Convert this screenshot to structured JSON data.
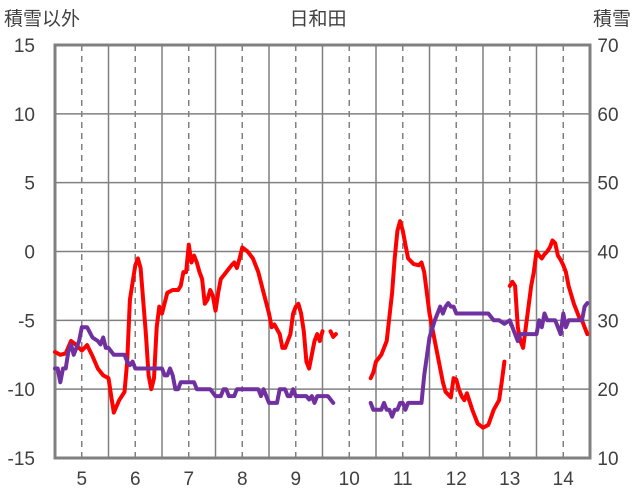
{
  "chart_data": {
    "type": "line",
    "title": "日和田",
    "left_axis_label": "積雪以外",
    "right_axis_label": "積雪",
    "ylim_left": [
      -15,
      15
    ],
    "ylim_right": [
      10,
      70
    ],
    "xlim": [
      4.5,
      14.5
    ],
    "yticks_left": [
      -15,
      -10,
      -5,
      0,
      5,
      10,
      15
    ],
    "yticks_right": [
      10,
      20,
      30,
      40,
      50,
      60,
      70
    ],
    "xticks": [
      5,
      6,
      7,
      8,
      9,
      10,
      11,
      12,
      13,
      14
    ],
    "grid": true,
    "legend": "none",
    "series": [
      {
        "color": "#ff0000",
        "axis": "left",
        "segments": [
          [
            [
              4.5,
              -7.3
            ],
            [
              4.6,
              -7.5
            ],
            [
              4.7,
              -7.4
            ],
            [
              4.8,
              -6.5
            ],
            [
              4.9,
              -6.8
            ],
            [
              5.0,
              -7.2
            ],
            [
              5.1,
              -6.8
            ],
            [
              5.2,
              -7.6
            ],
            [
              5.3,
              -8.5
            ],
            [
              5.4,
              -9.0
            ],
            [
              5.5,
              -9.2
            ],
            [
              5.55,
              -10.5
            ],
            [
              5.6,
              -11.7
            ],
            [
              5.7,
              -10.8
            ],
            [
              5.8,
              -10.2
            ],
            [
              5.85,
              -8.0
            ],
            [
              5.9,
              -3.5
            ],
            [
              6.0,
              -1.0
            ],
            [
              6.05,
              -0.5
            ],
            [
              6.1,
              -1.2
            ],
            [
              6.2,
              -6.0
            ],
            [
              6.25,
              -9.0
            ],
            [
              6.3,
              -10.0
            ],
            [
              6.35,
              -9.2
            ],
            [
              6.4,
              -5.5
            ],
            [
              6.45,
              -4.0
            ],
            [
              6.5,
              -4.5
            ],
            [
              6.6,
              -3.0
            ],
            [
              6.7,
              -2.8
            ],
            [
              6.8,
              -2.8
            ],
            [
              6.85,
              -2.5
            ],
            [
              6.9,
              -1.5
            ],
            [
              6.95,
              -1.5
            ],
            [
              7.0,
              0.5
            ],
            [
              7.05,
              -0.8
            ],
            [
              7.1,
              -0.3
            ],
            [
              7.15,
              -0.8
            ],
            [
              7.2,
              -1.5
            ],
            [
              7.25,
              -2.0
            ],
            [
              7.3,
              -3.8
            ],
            [
              7.35,
              -3.5
            ],
            [
              7.4,
              -2.8
            ],
            [
              7.45,
              -3.2
            ],
            [
              7.5,
              -4.3
            ],
            [
              7.55,
              -3.0
            ],
            [
              7.6,
              -2.0
            ],
            [
              7.7,
              -1.5
            ],
            [
              7.8,
              -1.0
            ],
            [
              7.85,
              -0.8
            ],
            [
              7.9,
              -1.2
            ],
            [
              7.95,
              -0.5
            ],
            [
              8.0,
              0.3
            ],
            [
              8.1,
              0.0
            ],
            [
              8.2,
              -0.5
            ],
            [
              8.3,
              -1.5
            ],
            [
              8.4,
              -3.0
            ],
            [
              8.5,
              -4.5
            ],
            [
              8.55,
              -5.5
            ],
            [
              8.6,
              -5.3
            ],
            [
              8.7,
              -6.0
            ],
            [
              8.75,
              -7.0
            ],
            [
              8.8,
              -7.0
            ],
            [
              8.9,
              -6.0
            ],
            [
              8.95,
              -4.5
            ],
            [
              9.0,
              -4.0
            ],
            [
              9.05,
              -3.8
            ],
            [
              9.1,
              -4.5
            ],
            [
              9.15,
              -5.8
            ],
            [
              9.2,
              -8.0
            ],
            [
              9.25,
              -8.5
            ],
            [
              9.3,
              -7.5
            ],
            [
              9.35,
              -6.5
            ],
            [
              9.4,
              -6.0
            ],
            [
              9.45,
              -6.5
            ],
            [
              9.5,
              -5.8
            ]
          ],
          [
            [
              9.65,
              -5.8
            ],
            [
              9.7,
              -6.2
            ],
            [
              9.75,
              -6.0
            ]
          ],
          [
            [
              10.4,
              -9.2
            ],
            [
              10.45,
              -8.8
            ],
            [
              10.5,
              -8.0
            ],
            [
              10.6,
              -7.5
            ],
            [
              10.7,
              -6.5
            ],
            [
              10.8,
              -3.0
            ],
            [
              10.85,
              -0.5
            ],
            [
              10.9,
              1.5
            ],
            [
              10.95,
              2.2
            ],
            [
              11.0,
              1.5
            ],
            [
              11.05,
              0.5
            ],
            [
              11.1,
              -0.5
            ],
            [
              11.2,
              -0.9
            ],
            [
              11.3,
              -1.0
            ],
            [
              11.35,
              -0.8
            ],
            [
              11.4,
              -1.5
            ],
            [
              11.5,
              -4.5
            ],
            [
              11.6,
              -6.5
            ],
            [
              11.7,
              -8.5
            ],
            [
              11.75,
              -9.5
            ],
            [
              11.8,
              -10.2
            ],
            [
              11.9,
              -10.6
            ],
            [
              11.95,
              -9.2
            ],
            [
              12.0,
              -9.3
            ],
            [
              12.05,
              -10.0
            ],
            [
              12.1,
              -10.5
            ],
            [
              12.15,
              -10.8
            ],
            [
              12.2,
              -10.3
            ],
            [
              12.3,
              -11.5
            ],
            [
              12.4,
              -12.5
            ],
            [
              12.5,
              -12.8
            ],
            [
              12.6,
              -12.6
            ],
            [
              12.7,
              -11.5
            ],
            [
              12.8,
              -10.8
            ],
            [
              12.85,
              -9.5
            ],
            [
              12.9,
              -8.0
            ]
          ],
          [
            [
              13.0,
              -2.5
            ],
            [
              13.05,
              -2.2
            ],
            [
              13.1,
              -2.5
            ],
            [
              13.15,
              -5.5
            ],
            [
              13.2,
              -6.5
            ],
            [
              13.25,
              -7.0
            ],
            [
              13.3,
              -5.5
            ],
            [
              13.35,
              -4.0
            ],
            [
              13.4,
              -2.5
            ],
            [
              13.45,
              -1.5
            ],
            [
              13.5,
              0.0
            ],
            [
              13.55,
              -0.3
            ],
            [
              13.6,
              -0.5
            ],
            [
              13.65,
              -0.2
            ],
            [
              13.7,
              0.0
            ],
            [
              13.75,
              0.3
            ],
            [
              13.8,
              0.8
            ],
            [
              13.85,
              0.6
            ],
            [
              13.9,
              -0.3
            ],
            [
              13.95,
              -0.6
            ],
            [
              14.0,
              -1.0
            ],
            [
              14.05,
              -1.5
            ],
            [
              14.1,
              -2.5
            ],
            [
              14.2,
              -3.8
            ],
            [
              14.3,
              -4.8
            ],
            [
              14.35,
              -5.0
            ],
            [
              14.4,
              -5.5
            ],
            [
              14.45,
              -6.0
            ]
          ]
        ]
      },
      {
        "color": "#7030a0",
        "axis": "right",
        "segments": [
          [
            [
              4.5,
              23.0
            ],
            [
              4.55,
              23.0
            ],
            [
              4.6,
              21.0
            ],
            [
              4.65,
              23.0
            ],
            [
              4.7,
              23.0
            ],
            [
              4.75,
              25.5
            ],
            [
              4.8,
              26.5
            ],
            [
              4.85,
              25.0
            ],
            [
              4.9,
              26.0
            ],
            [
              4.95,
              27.0
            ],
            [
              5.0,
              29.0
            ],
            [
              5.05,
              29.0
            ],
            [
              5.1,
              29.0
            ],
            [
              5.2,
              27.5
            ],
            [
              5.3,
              27.0
            ],
            [
              5.35,
              26.5
            ],
            [
              5.4,
              27.5
            ],
            [
              5.45,
              26.0
            ],
            [
              5.5,
              26.0
            ],
            [
              5.6,
              25.0
            ],
            [
              5.7,
              25.0
            ],
            [
              5.8,
              25.0
            ],
            [
              5.85,
              24.0
            ],
            [
              5.9,
              23.5
            ],
            [
              5.95,
              24.0
            ],
            [
              6.0,
              23.0
            ],
            [
              6.2,
              23.0
            ],
            [
              6.4,
              23.0
            ],
            [
              6.5,
              23.0
            ],
            [
              6.55,
              22.0
            ],
            [
              6.6,
              22.0
            ],
            [
              6.65,
              23.0
            ],
            [
              6.7,
              22.0
            ],
            [
              6.75,
              20.0
            ],
            [
              6.8,
              20.0
            ],
            [
              6.85,
              21.0
            ],
            [
              6.9,
              21.0
            ],
            [
              7.0,
              21.0
            ],
            [
              7.1,
              21.0
            ],
            [
              7.15,
              20.0
            ],
            [
              7.3,
              20.0
            ],
            [
              7.4,
              20.0
            ],
            [
              7.5,
              19.0
            ],
            [
              7.6,
              19.0
            ],
            [
              7.65,
              20.0
            ],
            [
              7.7,
              20.0
            ],
            [
              7.75,
              19.0
            ],
            [
              7.8,
              19.0
            ],
            [
              7.85,
              19.0
            ],
            [
              7.9,
              20.0
            ],
            [
              8.0,
              20.0
            ],
            [
              8.1,
              20.0
            ],
            [
              8.2,
              20.0
            ],
            [
              8.3,
              20.0
            ],
            [
              8.35,
              19.0
            ],
            [
              8.4,
              20.0
            ],
            [
              8.45,
              19.0
            ],
            [
              8.5,
              18.0
            ],
            [
              8.6,
              18.0
            ],
            [
              8.65,
              18.0
            ],
            [
              8.7,
              20.0
            ],
            [
              8.8,
              20.0
            ],
            [
              8.85,
              19.0
            ],
            [
              8.9,
              19.0
            ],
            [
              8.95,
              20.0
            ],
            [
              9.0,
              19.0
            ],
            [
              9.1,
              19.0
            ],
            [
              9.2,
              19.0
            ],
            [
              9.25,
              18.5
            ],
            [
              9.3,
              19.0
            ],
            [
              9.35,
              18.0
            ],
            [
              9.4,
              19.0
            ],
            [
              9.5,
              19.0
            ],
            [
              9.6,
              19.0
            ],
            [
              9.7,
              18.0
            ]
          ],
          [
            [
              10.4,
              18.0
            ],
            [
              10.45,
              17.0
            ],
            [
              10.5,
              17.0
            ],
            [
              10.55,
              17.0
            ],
            [
              10.6,
              17.0
            ],
            [
              10.65,
              18.0
            ],
            [
              10.7,
              17.0
            ],
            [
              10.75,
              17.0
            ],
            [
              10.8,
              16.0
            ],
            [
              10.85,
              17.0
            ],
            [
              10.9,
              17.0
            ],
            [
              10.95,
              18.0
            ],
            [
              11.0,
              18.0
            ],
            [
              11.05,
              17.0
            ],
            [
              11.1,
              18.0
            ],
            [
              11.2,
              18.0
            ],
            [
              11.3,
              18.0
            ],
            [
              11.35,
              18.0
            ],
            [
              11.4,
              22.0
            ],
            [
              11.5,
              27.5
            ],
            [
              11.6,
              30.0
            ],
            [
              11.65,
              31.0
            ],
            [
              11.7,
              32.0
            ],
            [
              11.75,
              31.0
            ],
            [
              11.8,
              32.0
            ],
            [
              11.85,
              32.5
            ],
            [
              11.9,
              32.0
            ],
            [
              11.95,
              32.0
            ],
            [
              12.0,
              31.0
            ],
            [
              12.2,
              31.0
            ],
            [
              12.3,
              31.0
            ],
            [
              12.4,
              31.0
            ],
            [
              12.5,
              31.0
            ],
            [
              12.6,
              31.0
            ],
            [
              12.7,
              30.0
            ],
            [
              12.8,
              30.0
            ],
            [
              12.9,
              29.5
            ],
            [
              13.0,
              30.0
            ],
            [
              13.1,
              28.0
            ],
            [
              13.15,
              27.0
            ],
            [
              13.2,
              28.0
            ],
            [
              13.3,
              28.0
            ],
            [
              13.4,
              28.0
            ],
            [
              13.5,
              28.0
            ],
            [
              13.55,
              30.0
            ],
            [
              13.6,
              29.0
            ],
            [
              13.65,
              31.0
            ],
            [
              13.7,
              30.0
            ],
            [
              13.75,
              30.0
            ],
            [
              13.8,
              30.0
            ],
            [
              13.85,
              30.0
            ],
            [
              13.9,
              29.0
            ],
            [
              13.95,
              28.0
            ],
            [
              14.0,
              31.0
            ],
            [
              14.05,
              29.0
            ],
            [
              14.1,
              30.0
            ],
            [
              14.2,
              30.0
            ],
            [
              14.25,
              30.0
            ],
            [
              14.3,
              30.0
            ],
            [
              14.35,
              30.0
            ],
            [
              14.4,
              32.0
            ],
            [
              14.45,
              32.5
            ]
          ]
        ]
      }
    ]
  }
}
